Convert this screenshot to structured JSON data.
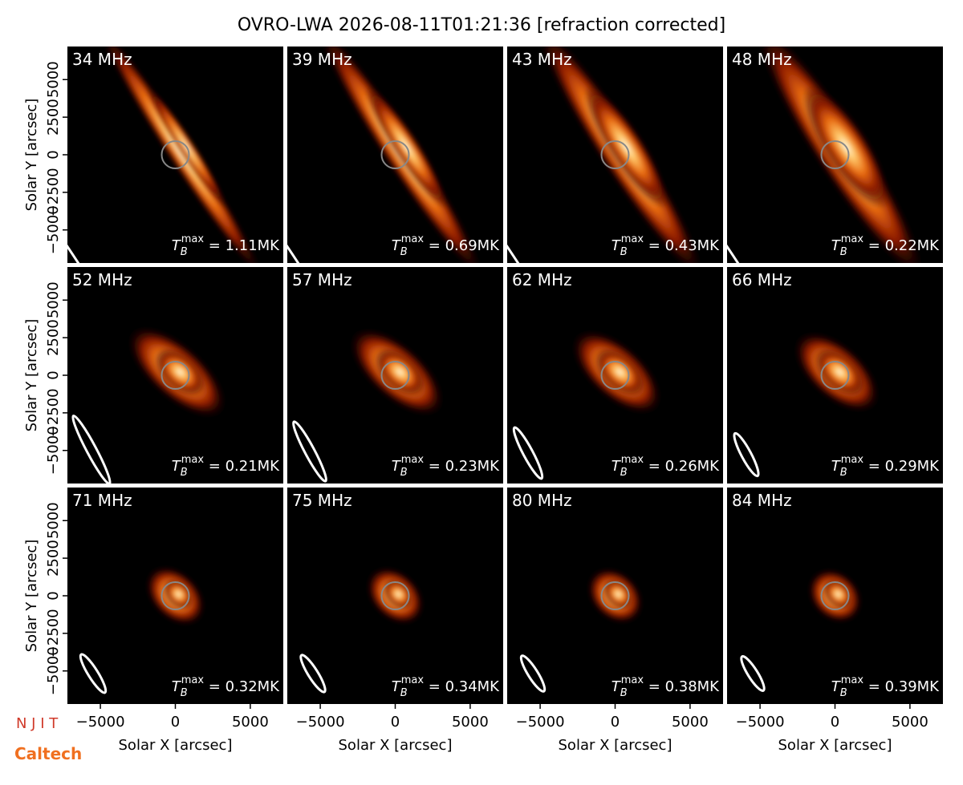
{
  "chart_data": {
    "type": "image-grid",
    "title": "OVRO-LWA 2026-08-11T01:21:36 [refraction corrected]",
    "xlabel": "Solar X [arcsec]",
    "ylabel": "Solar Y [arcsec]",
    "xlim": [
      -7200,
      7200
    ],
    "ylim": [
      -7200,
      7200
    ],
    "xticks": [
      {
        "value": -5000,
        "label": "−5000"
      },
      0,
      5000
    ],
    "yticks": [
      {
        "value": -5000,
        "label": "−5000"
      },
      {
        "value": -2500,
        "label": "−2500"
      },
      0,
      2500,
      5000
    ],
    "tmax_symbol": {
      "base": "T",
      "sub": "B",
      "sup": "max",
      "eq": " = "
    },
    "tmax_unit": "MK",
    "panels": [
      {
        "label": "34 MHz",
        "tmax": 1.11
      },
      {
        "label": "39 MHz",
        "tmax": 0.69
      },
      {
        "label": "43 MHz",
        "tmax": 0.43
      },
      {
        "label": "48 MHz",
        "tmax": 0.22
      },
      {
        "label": "52 MHz",
        "tmax": 0.21
      },
      {
        "label": "57 MHz",
        "tmax": 0.23
      },
      {
        "label": "62 MHz",
        "tmax": 0.26
      },
      {
        "label": "66 MHz",
        "tmax": 0.29
      },
      {
        "label": "71 MHz",
        "tmax": 0.32
      },
      {
        "label": "75 MHz",
        "tmax": 0.34
      },
      {
        "label": "80 MHz",
        "tmax": 0.38
      },
      {
        "label": "84 MHz",
        "tmax": 0.39
      }
    ]
  },
  "logos": [
    "N J I T",
    "Caltech"
  ]
}
